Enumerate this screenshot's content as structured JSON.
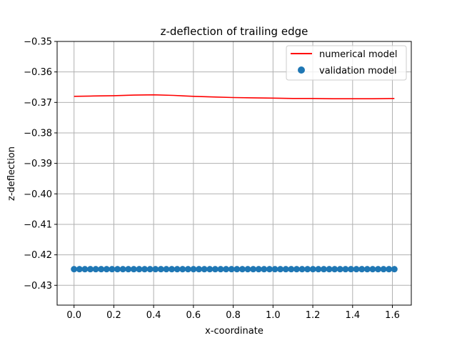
{
  "chart_data": {
    "type": "line",
    "title": "z-deflection of trailing edge",
    "xlabel": "x-coordinate",
    "ylabel": "z-deflection",
    "xlim": [
      -0.085,
      1.695
    ],
    "ylim": [
      -0.4365,
      -0.35
    ],
    "xticks": [
      0.0,
      0.2,
      0.4,
      0.6,
      0.8,
      1.0,
      1.2,
      1.4,
      1.6
    ],
    "xtick_labels": [
      "0.0",
      "0.2",
      "0.4",
      "0.6",
      "0.8",
      "1.0",
      "1.2",
      "1.4",
      "1.6"
    ],
    "yticks": [
      -0.35,
      -0.36,
      -0.37,
      -0.38,
      -0.39,
      -0.4,
      -0.41,
      -0.42,
      -0.43
    ],
    "ytick_labels": [
      "−0.35",
      "−0.36",
      "−0.37",
      "−0.38",
      "−0.39",
      "−0.40",
      "−0.41",
      "−0.42",
      "−0.43"
    ],
    "grid": true,
    "legend_position": "upper right",
    "series": [
      {
        "name": "numerical model",
        "kind": "line",
        "color": "#ff0000",
        "x": [
          0.0,
          0.1,
          0.2,
          0.3,
          0.4,
          0.5,
          0.6,
          0.7,
          0.8,
          0.9,
          1.0,
          1.1,
          1.2,
          1.3,
          1.4,
          1.5,
          1.61
        ],
        "y": [
          -0.368,
          -0.3679,
          -0.3678,
          -0.3676,
          -0.3675,
          -0.3677,
          -0.368,
          -0.3682,
          -0.3684,
          -0.3685,
          -0.3686,
          -0.3687,
          -0.3687,
          -0.3688,
          -0.3688,
          -0.3688,
          -0.3687
        ]
      },
      {
        "name": "validation model",
        "kind": "scatter",
        "color": "#1f77b4",
        "x_start": 0.0,
        "x_end": 1.61,
        "count": 60,
        "y_value": -0.4247
      }
    ]
  }
}
